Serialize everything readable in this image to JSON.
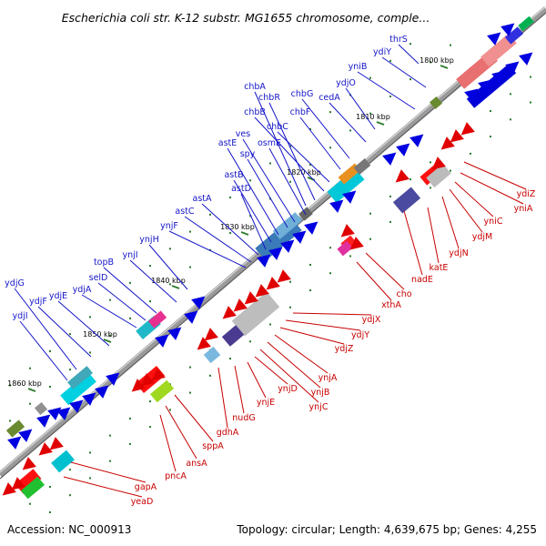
{
  "title": "Escherichia coli str. K-12 substr. MG1655 chromosome, comple...",
  "footer": {
    "accession": "Accession: NC_000913",
    "summary": "Topology: circular; Length: 4,639,675 bp; Genes: 4,255"
  },
  "ticks": [
    {
      "label": "1800 kbp",
      "pos": 1800
    },
    {
      "label": "1810 kbp",
      "pos": 1810
    },
    {
      "label": "1820 kbp",
      "pos": 1820
    },
    {
      "label": "1830 kbp",
      "pos": 1830
    },
    {
      "label": "1840 kbp",
      "pos": 1840
    },
    {
      "label": "1850 kbp",
      "pos": 1850
    },
    {
      "label": "1860 kbp",
      "pos": 1860
    }
  ],
  "labels_upper": [
    "thrS",
    "ydiY",
    "yniB",
    "ydjO",
    "cedA",
    "chbG",
    "chbF",
    "chbC",
    "chbB",
    "chbR",
    "chbA",
    "osmE",
    "ves",
    "spy",
    "astE",
    "astB",
    "astD",
    "astA",
    "astC",
    "ynjF",
    "ynjH",
    "ynjI",
    "topB",
    "selD",
    "ydjA",
    "ydjE",
    "ydjF",
    "ydjG",
    "ydjI"
  ],
  "labels_lower": [
    "ydiZ",
    "yniA",
    "yniC",
    "ydjM",
    "ydjN",
    "katE",
    "nadE",
    "cho",
    "xthA",
    "ydjX",
    "ydjY",
    "ydjZ",
    "ynjA",
    "ynjB",
    "ynjC",
    "ynjD",
    "ynjE",
    "nudG",
    "gdhA",
    "sppA",
    "ansA",
    "pncA",
    "gapA",
    "yeaD"
  ],
  "colors": {
    "backbone": "#888888",
    "forward_arrow": "#0000e0",
    "reverse_arrow": "#e00000",
    "upper_label": "#1515c8",
    "lower_label": "#c80000"
  }
}
